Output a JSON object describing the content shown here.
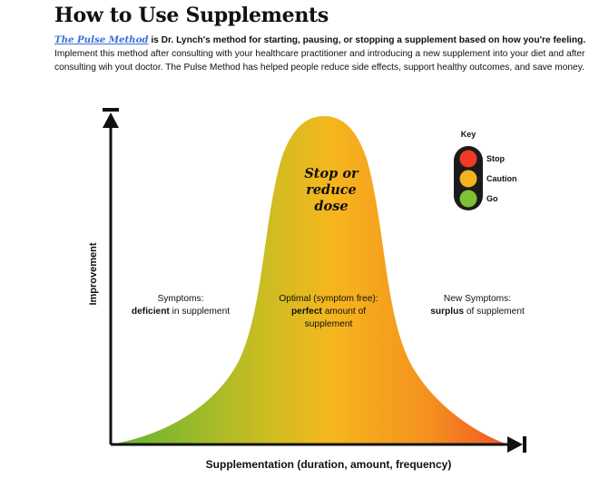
{
  "header": {
    "title": "How to Use Supplements",
    "method_name": "The Pulse Method",
    "lead_text": " is Dr. Lynch's method for starting, pausing, or stopping a supplement based on how you're feeling.",
    "body_text": "Implement this method after consulting with your healthcare practitioner and introducing a new supplement into your diet and after consulting wih yout doctor. The Pulse Method has helped people reduce side effects, support healthy outcomes, and save money."
  },
  "diagram": {
    "peak_label": [
      "Stop or",
      "reduce",
      "dose"
    ],
    "x_axis_label": "Supplementation (duration, amount, frequency)",
    "y_axis_label": "Improvement",
    "zones": [
      {
        "line1": "Symptoms:",
        "bold": "deficient",
        "rest": " in supplement",
        "line3": ""
      },
      {
        "line1": "Optimal (symptom free):",
        "bold": "perfect",
        "rest": " amount of",
        "line3": "supplement"
      },
      {
        "line1": "New Symptoms:",
        "bold": "surplus",
        "rest": " of supplement",
        "line3": ""
      }
    ],
    "gradient_colors": [
      "#5fb534",
      "#c9bd22",
      "#f5b71e",
      "#f5911e",
      "#f2552a"
    ]
  },
  "key": {
    "title": "Key",
    "items": [
      {
        "label": "Stop",
        "color": "#ef3b24"
      },
      {
        "label": "Caution",
        "color": "#f3b21e"
      },
      {
        "label": "Go",
        "color": "#7cc234"
      }
    ]
  }
}
